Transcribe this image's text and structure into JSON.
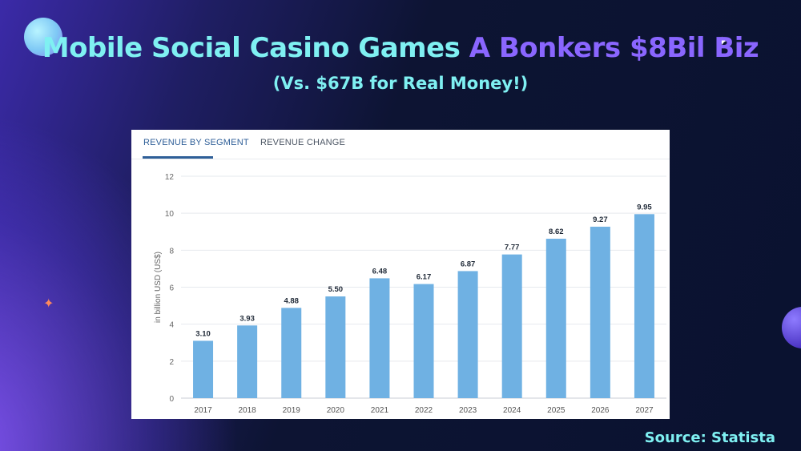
{
  "slide": {
    "title_part1": "Mobile Social Casino Games",
    "title_part2": "A Bonkers $8Bil Biz",
    "subtitle": "(Vs. $67B for Real Money!)",
    "source": "Source: Statista"
  },
  "tabs": [
    {
      "label": "REVENUE BY SEGMENT"
    },
    {
      "label": "REVENUE CHANGE"
    }
  ],
  "colors": {
    "bar": "#6fb1e3",
    "title_accent": "#7ff0f2",
    "title_purple": "#8a66ff"
  },
  "chart_data": {
    "type": "bar",
    "categories": [
      "2017",
      "2018",
      "2019",
      "2020",
      "2021",
      "2022",
      "2023",
      "2024",
      "2025",
      "2026",
      "2027"
    ],
    "values": [
      3.1,
      3.93,
      4.88,
      5.5,
      6.48,
      6.17,
      6.87,
      7.77,
      8.62,
      9.27,
      9.95
    ],
    "value_labels": [
      "3.10",
      "3.93",
      "4.88",
      "5.50",
      "6.48",
      "6.17",
      "6.87",
      "7.77",
      "8.62",
      "9.27",
      "9.95"
    ],
    "ylabel": "in billion USD (US$)",
    "ylim": [
      0,
      12
    ],
    "yticks": [
      "0",
      "2",
      "4",
      "6",
      "8",
      "10",
      "12"
    ],
    "grid": true
  }
}
